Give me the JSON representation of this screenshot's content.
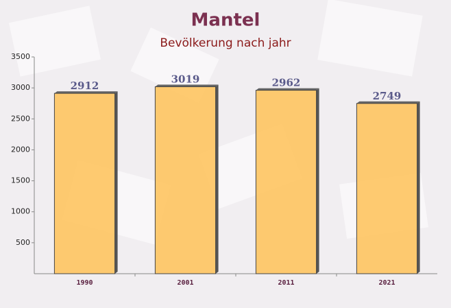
{
  "chart_data": {
    "type": "bar",
    "title": "Mantel",
    "subtitle": "Bevölkerung nach jahr",
    "categories": [
      "1990",
      "2001",
      "2011",
      "2021"
    ],
    "values": [
      2912,
      3019,
      2962,
      2749
    ],
    "color": "#fec461",
    "ylim": [
      0,
      3500
    ],
    "yticks": [
      500,
      1000,
      1500,
      2000,
      2500,
      3000,
      3500
    ],
    "grid": false
  }
}
